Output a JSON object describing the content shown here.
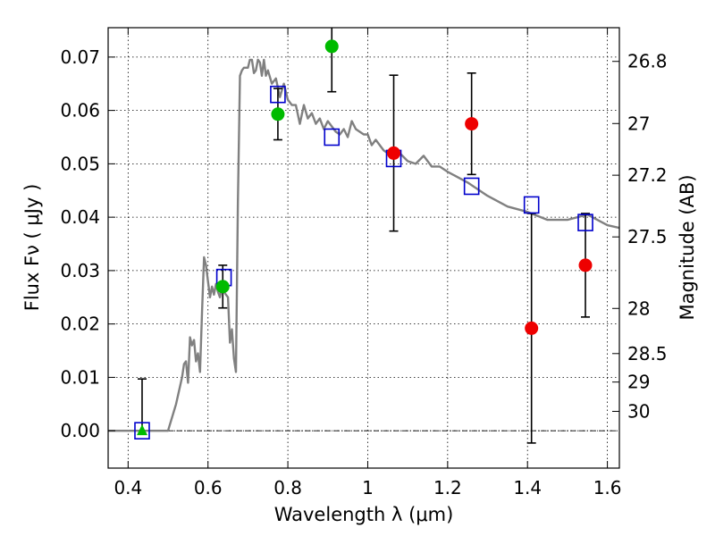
{
  "chart_data": {
    "type": "scatter",
    "xlabel": "Wavelength  λ (μm)",
    "ylabel": "Flux  Fν  ( μJy )",
    "y2label": "Magnitude (AB)",
    "xlim": [
      0.35,
      1.63
    ],
    "ylim": [
      -0.007,
      0.0755
    ],
    "grid": true,
    "grid_style": "dotted",
    "x_ticks": [
      {
        "value": 0.4,
        "label": "0.4"
      },
      {
        "value": 0.6,
        "label": "0.6"
      },
      {
        "value": 0.8,
        "label": "0.8"
      },
      {
        "value": 1.0,
        "label": "1"
      },
      {
        "value": 1.2,
        "label": "1.2"
      },
      {
        "value": 1.4,
        "label": "1.4"
      },
      {
        "value": 1.6,
        "label": "1.6"
      }
    ],
    "y_ticks": [
      {
        "value": 0.0,
        "label": "0.00"
      },
      {
        "value": 0.01,
        "label": "0.01"
      },
      {
        "value": 0.02,
        "label": "0.02"
      },
      {
        "value": 0.03,
        "label": "0.03"
      },
      {
        "value": 0.04,
        "label": "0.04"
      },
      {
        "value": 0.05,
        "label": "0.05"
      },
      {
        "value": 0.06,
        "label": "0.06"
      },
      {
        "value": 0.07,
        "label": "0.07"
      }
    ],
    "y2_ticks": [
      {
        "value": 26.8,
        "label": "26.8"
      },
      {
        "value": 27.0,
        "label": "27"
      },
      {
        "value": 27.2,
        "label": "27.2"
      },
      {
        "value": 27.5,
        "label": "27.5"
      },
      {
        "value": 28.0,
        "label": "28"
      },
      {
        "value": 28.5,
        "label": "28.5"
      },
      {
        "value": 29.0,
        "label": "29"
      },
      {
        "value": 30.0,
        "label": "30"
      }
    ],
    "colors": {
      "model_line": "#808080",
      "model_box": "#0000cc",
      "green_point": "#00bb00",
      "red_point": "#ee0000",
      "error_bar": "#000000"
    },
    "series": [
      {
        "kind": "model_spectrum",
        "x": [
          0.35,
          0.49,
          0.5,
          0.52,
          0.535,
          0.54,
          0.545,
          0.55,
          0.555,
          0.56,
          0.565,
          0.57,
          0.575,
          0.58,
          0.585,
          0.59,
          0.595,
          0.6,
          0.605,
          0.61,
          0.615,
          0.62,
          0.625,
          0.63,
          0.635,
          0.64,
          0.645,
          0.65,
          0.655,
          0.66,
          0.665,
          0.67,
          0.675,
          0.68,
          0.685,
          0.69,
          0.7,
          0.705,
          0.71,
          0.715,
          0.72,
          0.725,
          0.73,
          0.735,
          0.74,
          0.745,
          0.75,
          0.76,
          0.77,
          0.78,
          0.79,
          0.8,
          0.81,
          0.82,
          0.83,
          0.84,
          0.85,
          0.86,
          0.87,
          0.88,
          0.89,
          0.9,
          0.91,
          0.92,
          0.93,
          0.94,
          0.95,
          0.96,
          0.97,
          0.98,
          0.99,
          1.0,
          1.01,
          1.02,
          1.04,
          1.06,
          1.08,
          1.1,
          1.12,
          1.14,
          1.15,
          1.16,
          1.18,
          1.2,
          1.25,
          1.3,
          1.35,
          1.4,
          1.45,
          1.5,
          1.55,
          1.6,
          1.63
        ],
        "y": [
          0.0,
          0.0,
          0.0,
          0.005,
          0.01,
          0.0125,
          0.013,
          0.009,
          0.0175,
          0.016,
          0.017,
          0.013,
          0.0145,
          0.011,
          0.022,
          0.0325,
          0.031,
          0.028,
          0.025,
          0.027,
          0.0255,
          0.0275,
          0.026,
          0.025,
          0.027,
          0.026,
          0.0255,
          0.025,
          0.0165,
          0.019,
          0.0135,
          0.011,
          0.043,
          0.0665,
          0.0675,
          0.068,
          0.068,
          0.0695,
          0.0695,
          0.067,
          0.0675,
          0.0695,
          0.069,
          0.0665,
          0.0695,
          0.0665,
          0.0675,
          0.065,
          0.066,
          0.0625,
          0.065,
          0.062,
          0.061,
          0.061,
          0.0575,
          0.061,
          0.0585,
          0.0595,
          0.0575,
          0.0585,
          0.0565,
          0.058,
          0.057,
          0.056,
          0.0555,
          0.0565,
          0.055,
          0.058,
          0.0565,
          0.056,
          0.0555,
          0.0555,
          0.0535,
          0.0545,
          0.0525,
          0.0515,
          0.052,
          0.0505,
          0.05,
          0.0515,
          0.0505,
          0.0495,
          0.0495,
          0.0485,
          0.0465,
          0.044,
          0.042,
          0.041,
          0.0395,
          0.0395,
          0.0405,
          0.0385,
          0.038
        ]
      },
      {
        "kind": "model_boxes",
        "x": [
          0.435,
          0.64,
          0.775,
          0.91,
          1.065,
          1.26,
          1.41,
          1.545
        ],
        "y": [
          0.0,
          0.0287,
          0.063,
          0.055,
          0.051,
          0.0458,
          0.0423,
          0.039
        ]
      },
      {
        "kind": "observed_green",
        "x": [
          0.637,
          0.775,
          0.91
        ],
        "y": [
          0.027,
          0.0593,
          0.072
        ],
        "yerr": [
          0.004,
          0.0048,
          0.0085
        ]
      },
      {
        "kind": "observed_red",
        "x": [
          1.065,
          1.26,
          1.41,
          1.545
        ],
        "y": [
          0.052,
          0.0575,
          0.0192,
          0.031
        ],
        "yerr": [
          0.0146,
          0.0095,
          0.0215,
          0.0097
        ]
      },
      {
        "kind": "upper_limit_triangle",
        "x": [
          0.435
        ],
        "y": [
          0.0
        ],
        "yerr_upper": [
          0.0097
        ]
      }
    ]
  }
}
